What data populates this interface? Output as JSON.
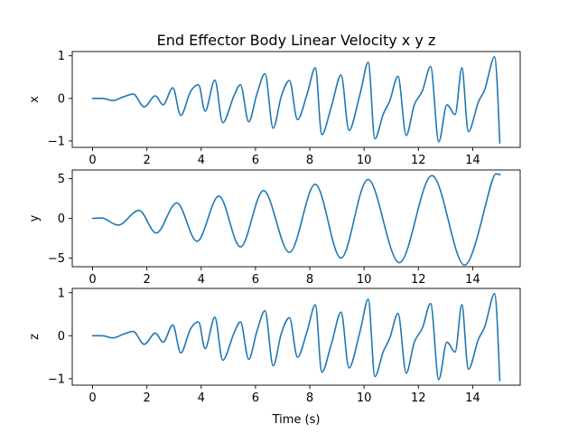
{
  "chart_data": {
    "type": "line",
    "title": "End Effector Body Linear Velocity x y z",
    "xlabel": "Time (s)",
    "line_color": "#1f77b4",
    "xlim": [
      -0.75,
      15.75
    ],
    "xticks": [
      0,
      2,
      4,
      6,
      8,
      10,
      12,
      14
    ],
    "subplots": [
      {
        "name": "x",
        "ylabel": "x",
        "ylim": [
          -1.15,
          1.1
        ],
        "yticks": [
          -1,
          0,
          1
        ],
        "peaks": [
          [
            0,
            0.0
          ],
          [
            0.35,
            0.0
          ],
          [
            0.75,
            -0.05
          ],
          [
            1.15,
            0.04
          ],
          [
            1.5,
            0.1
          ],
          [
            1.9,
            -0.2
          ],
          [
            2.3,
            0.06
          ],
          [
            2.6,
            -0.15
          ],
          [
            2.95,
            0.25
          ],
          [
            3.25,
            -0.4
          ],
          [
            3.6,
            0.15
          ],
          [
            3.9,
            0.32
          ],
          [
            4.15,
            -0.3
          ],
          [
            4.5,
            0.43
          ],
          [
            4.8,
            -0.57
          ],
          [
            5.2,
            0.05
          ],
          [
            5.45,
            0.32
          ],
          [
            5.75,
            -0.55
          ],
          [
            6.05,
            0.1
          ],
          [
            6.35,
            0.58
          ],
          [
            6.65,
            -0.7
          ],
          [
            6.95,
            0.05
          ],
          [
            7.25,
            0.42
          ],
          [
            7.55,
            -0.5
          ],
          [
            7.9,
            0.1
          ],
          [
            8.2,
            0.72
          ],
          [
            8.45,
            -0.85
          ],
          [
            8.8,
            -0.18
          ],
          [
            9.15,
            0.55
          ],
          [
            9.45,
            -0.75
          ],
          [
            9.85,
            0.1
          ],
          [
            10.15,
            0.85
          ],
          [
            10.4,
            -0.95
          ],
          [
            10.7,
            -0.38
          ],
          [
            10.95,
            -0.05
          ],
          [
            11.25,
            0.52
          ],
          [
            11.55,
            -0.87
          ],
          [
            11.85,
            -0.15
          ],
          [
            12.15,
            0.18
          ],
          [
            12.45,
            0.75
          ],
          [
            12.75,
            -1.02
          ],
          [
            13.05,
            -0.15
          ],
          [
            13.35,
            -0.38
          ],
          [
            13.6,
            0.72
          ],
          [
            13.85,
            -0.78
          ],
          [
            14.2,
            -0.1
          ],
          [
            14.45,
            0.22
          ],
          [
            14.8,
            0.98
          ],
          [
            15.0,
            -1.05
          ]
        ]
      },
      {
        "name": "y",
        "ylabel": "y",
        "ylim": [
          -6.1,
          6.1
        ],
        "yticks": [
          -5,
          0,
          5
        ],
        "peaks": [
          [
            0,
            0.0
          ],
          [
            0.35,
            0.05
          ],
          [
            0.95,
            -0.85
          ],
          [
            1.7,
            1.0
          ],
          [
            2.35,
            -1.85
          ],
          [
            3.1,
            1.95
          ],
          [
            3.85,
            -2.9
          ],
          [
            4.65,
            2.8
          ],
          [
            5.45,
            -3.6
          ],
          [
            6.3,
            3.5
          ],
          [
            7.25,
            -4.3
          ],
          [
            8.2,
            4.3
          ],
          [
            9.15,
            -5.0
          ],
          [
            10.15,
            4.9
          ],
          [
            11.3,
            -5.6
          ],
          [
            12.5,
            5.4
          ],
          [
            13.7,
            -5.9
          ],
          [
            14.85,
            5.6
          ],
          [
            15.0,
            5.5
          ]
        ]
      },
      {
        "name": "z",
        "ylabel": "z",
        "ylim": [
          -1.15,
          1.1
        ],
        "yticks": [
          -1,
          0,
          1
        ],
        "peaks": [
          [
            0,
            0.0
          ],
          [
            0.35,
            0.0
          ],
          [
            0.75,
            -0.05
          ],
          [
            1.15,
            0.04
          ],
          [
            1.5,
            0.1
          ],
          [
            1.9,
            -0.2
          ],
          [
            2.3,
            0.06
          ],
          [
            2.6,
            -0.15
          ],
          [
            2.95,
            0.25
          ],
          [
            3.25,
            -0.4
          ],
          [
            3.6,
            0.15
          ],
          [
            3.9,
            0.32
          ],
          [
            4.15,
            -0.3
          ],
          [
            4.5,
            0.43
          ],
          [
            4.8,
            -0.57
          ],
          [
            5.2,
            0.05
          ],
          [
            5.45,
            0.32
          ],
          [
            5.75,
            -0.55
          ],
          [
            6.05,
            0.1
          ],
          [
            6.35,
            0.58
          ],
          [
            6.65,
            -0.7
          ],
          [
            6.95,
            0.05
          ],
          [
            7.25,
            0.42
          ],
          [
            7.55,
            -0.5
          ],
          [
            7.9,
            0.1
          ],
          [
            8.2,
            0.72
          ],
          [
            8.45,
            -0.85
          ],
          [
            8.8,
            -0.18
          ],
          [
            9.15,
            0.55
          ],
          [
            9.45,
            -0.75
          ],
          [
            9.85,
            0.1
          ],
          [
            10.15,
            0.85
          ],
          [
            10.4,
            -0.95
          ],
          [
            10.7,
            -0.38
          ],
          [
            10.95,
            -0.05
          ],
          [
            11.25,
            0.52
          ],
          [
            11.55,
            -0.87
          ],
          [
            11.85,
            -0.15
          ],
          [
            12.15,
            0.18
          ],
          [
            12.45,
            0.75
          ],
          [
            12.75,
            -1.02
          ],
          [
            13.05,
            -0.15
          ],
          [
            13.35,
            -0.38
          ],
          [
            13.6,
            0.72
          ],
          [
            13.85,
            -0.78
          ],
          [
            14.2,
            -0.1
          ],
          [
            14.45,
            0.22
          ],
          [
            14.8,
            0.98
          ],
          [
            15.0,
            -1.05
          ]
        ]
      }
    ]
  }
}
